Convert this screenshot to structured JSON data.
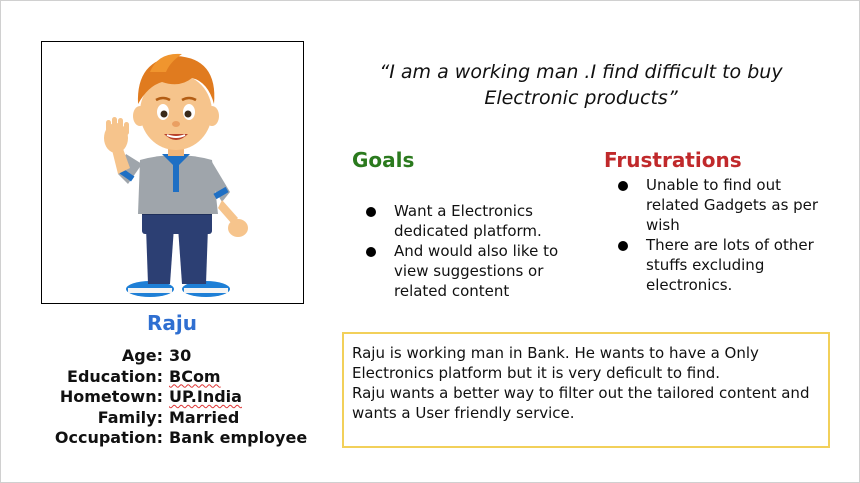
{
  "persona": {
    "name": "Raju",
    "image_icon": "cartoon-boy-waving-icon",
    "details": [
      {
        "label": "Age:",
        "value": "30"
      },
      {
        "label": "Education:",
        "value": "BCom"
      },
      {
        "label": "Hometown:",
        "value": "UP.India"
      },
      {
        "label": "Family:",
        "value": "Married"
      },
      {
        "label": "Occupation:",
        "value": "Bank employee"
      }
    ]
  },
  "quote": "“I am a working man .I find difficult to buy Electronic products”",
  "goals": {
    "heading": "Goals",
    "color": "#2b7a1e",
    "items": [
      "Want a Electronics dedicated platform.",
      "And would also like to view suggestions or related content"
    ]
  },
  "frustrations": {
    "heading": "Frustrations",
    "color": "#c0292b",
    "items": [
      "Unable to find out related Gadgets as per wish",
      "There are lots of other stuffs excluding electronics."
    ]
  },
  "summary": {
    "lines": [
      "Raju is working man in Bank. He wants to have a Only Electronics platform but it is very deficult to find.",
      "Raju wants a better way to filter out the tailored content and wants a User friendly service."
    ],
    "border_color": "#f2d05a"
  }
}
